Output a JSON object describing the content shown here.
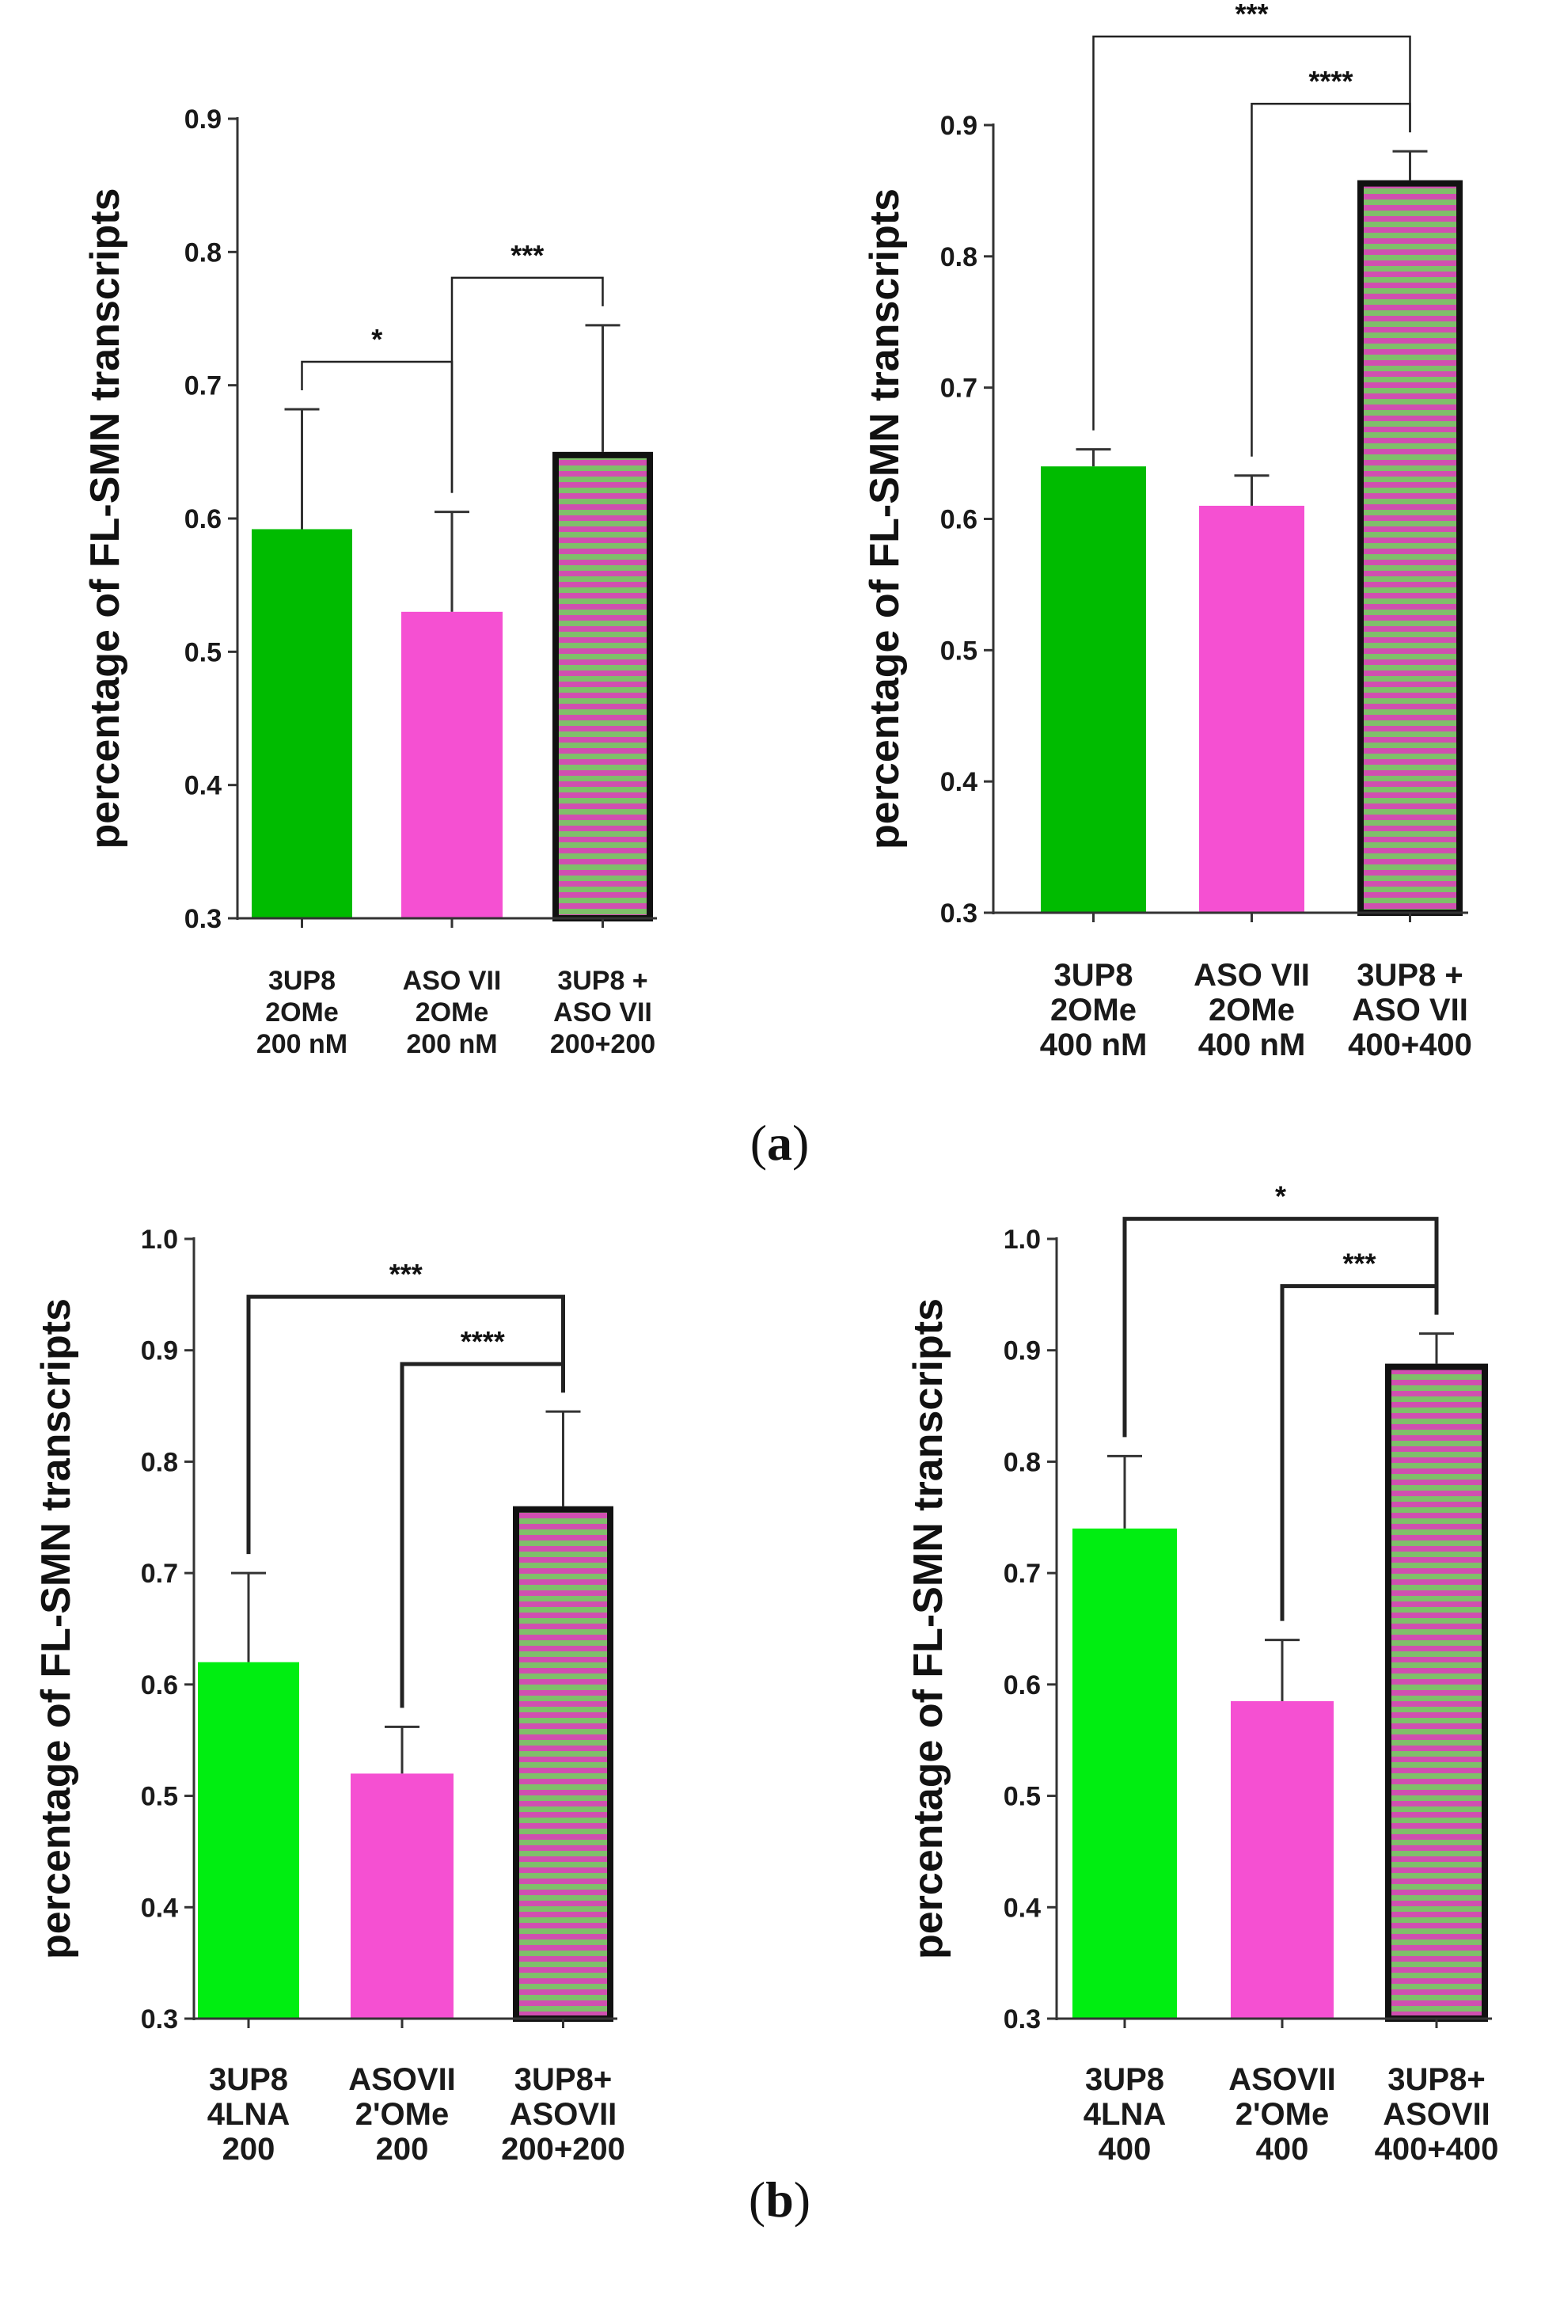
{
  "colors": {
    "green_a": "#00bb00",
    "green_b": "#00ee11",
    "magenta": "#f550d2",
    "stripe_green": "#7fbf6a",
    "stripe_magenta": "#d04fb0",
    "outline": "#111111"
  },
  "panels": [
    {
      "id": "a",
      "label": "a"
    },
    {
      "id": "b",
      "label": "b"
    }
  ],
  "chart_data": [
    {
      "type": "bar",
      "panel": "a",
      "ylabel": "percentage of FL-SMN transcripts",
      "ylim": [
        0.3,
        0.9
      ],
      "yticks": [
        "0.3",
        "0.4",
        "0.5",
        "0.6",
        "0.7",
        "0.8",
        "0.9"
      ],
      "categories": [
        [
          "3UP8",
          "2OMe",
          "200 nM"
        ],
        [
          "ASO VII",
          "2OMe",
          "200 nM"
        ],
        [
          "3UP8 +",
          "ASO VII",
          "200+200"
        ]
      ],
      "values": [
        0.592,
        0.53,
        0.65
      ],
      "errors": [
        0.09,
        0.075,
        0.095
      ],
      "fills": [
        "green_a",
        "magenta",
        "striped"
      ],
      "significance": [
        {
          "from": 0,
          "to": 1,
          "label": "*",
          "level": 0
        },
        {
          "from": 1,
          "to": 2,
          "label": "***",
          "level": 0
        }
      ]
    },
    {
      "type": "bar",
      "panel": "a",
      "ylabel": "percentage of FL-SMN transcripts",
      "ylim": [
        0.3,
        0.9
      ],
      "yticks": [
        "0.3",
        "0.4",
        "0.5",
        "0.6",
        "0.7",
        "0.8",
        "0.9"
      ],
      "categories": [
        [
          "3UP8",
          "2OMe",
          "400 nM"
        ],
        [
          "ASO VII",
          "2OMe",
          "400 nM"
        ],
        [
          "3UP8 +",
          "ASO VII",
          "400+400"
        ]
      ],
      "values": [
        0.64,
        0.61,
        0.858
      ],
      "errors": [
        0.013,
        0.023,
        0.022
      ],
      "fills": [
        "green_a",
        "magenta",
        "striped"
      ],
      "significance": [
        {
          "from": 1,
          "to": 2,
          "label": "****",
          "level": 0
        },
        {
          "from": 0,
          "to": 2,
          "label": "***",
          "level": 1
        }
      ]
    },
    {
      "type": "bar",
      "panel": "b",
      "ylabel": "percentage of FL-SMN transcripts",
      "ylim": [
        0.3,
        1.0
      ],
      "yticks": [
        "0.3",
        "0.4",
        "0.5",
        "0.6",
        "0.7",
        "0.8",
        "0.9",
        "1.0"
      ],
      "categories": [
        [
          "3UP8",
          "4LNA",
          "200"
        ],
        [
          "ASOVII",
          "2'OMe",
          "200"
        ],
        [
          "3UP8+",
          "ASOVII",
          "200+200"
        ]
      ],
      "values": [
        0.62,
        0.52,
        0.76
      ],
      "errors": [
        0.08,
        0.042,
        0.085
      ],
      "fills": [
        "green_b",
        "magenta",
        "striped"
      ],
      "significance": [
        {
          "from": 1,
          "to": 2,
          "label": "****",
          "level": 0
        },
        {
          "from": 0,
          "to": 2,
          "label": "***",
          "level": 1
        }
      ]
    },
    {
      "type": "bar",
      "panel": "b",
      "ylabel": "percentage of FL-SMN transcripts",
      "ylim": [
        0.3,
        1.0
      ],
      "yticks": [
        "0.3",
        "0.4",
        "0.5",
        "0.6",
        "0.7",
        "0.8",
        "0.9",
        "1.0"
      ],
      "categories": [
        [
          "3UP8",
          "4LNA",
          "400"
        ],
        [
          "ASOVII",
          "2'OMe",
          "400"
        ],
        [
          "3UP8+",
          "ASOVII",
          "400+400"
        ]
      ],
      "values": [
        0.74,
        0.585,
        0.888
      ],
      "errors": [
        0.065,
        0.055,
        0.027
      ],
      "fills": [
        "green_b",
        "magenta",
        "striped"
      ],
      "significance": [
        {
          "from": 1,
          "to": 2,
          "label": "***",
          "level": 0
        },
        {
          "from": 0,
          "to": 2,
          "label": "*",
          "level": 1
        }
      ]
    }
  ]
}
